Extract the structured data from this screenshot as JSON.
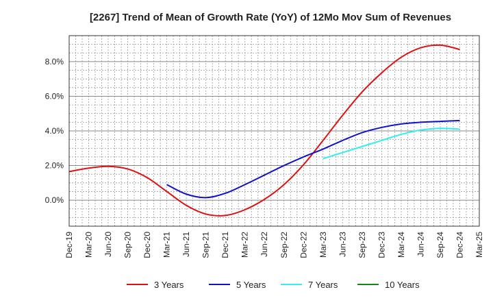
{
  "chart_data": {
    "type": "line",
    "title": "[2267]  Trend of Mean of Growth Rate (YoY) of 12Mo Mov Sum of Revenues",
    "xlabel": "",
    "ylabel": "",
    "ylim": [
      -1.5,
      9.5
    ],
    "yticks": [
      0,
      2,
      4,
      6,
      8
    ],
    "ytick_labels": [
      "0.0%",
      "2.0%",
      "4.0%",
      "6.0%",
      "8.0%"
    ],
    "xlim": [
      0,
      63
    ],
    "categories": [
      "Dec-19",
      "Mar-20",
      "Jun-20",
      "Sep-20",
      "Dec-20",
      "Mar-21",
      "Jun-21",
      "Sep-21",
      "Dec-21",
      "Mar-22",
      "Jun-22",
      "Sep-22",
      "Dec-22",
      "Mar-23",
      "Jun-23",
      "Sep-23",
      "Dec-23",
      "Mar-24",
      "Jun-24",
      "Sep-24",
      "Dec-24",
      "Mar-25"
    ],
    "grid": true,
    "legend_position": "bottom",
    "series": [
      {
        "name": "3 Years",
        "color": "#dd1111",
        "x": [
          0,
          3,
          6,
          9,
          12,
          15,
          18,
          21,
          24,
          27,
          30,
          33,
          36,
          39,
          42,
          45,
          48,
          51,
          54,
          57,
          60
        ],
        "values": [
          1.65,
          1.85,
          1.95,
          1.8,
          1.3,
          0.5,
          -0.3,
          -0.8,
          -0.88,
          -0.55,
          0.05,
          0.9,
          2.05,
          3.45,
          4.9,
          6.25,
          7.35,
          8.25,
          8.8,
          8.95,
          8.7
        ]
      },
      {
        "name": "5 Years",
        "color": "#1111cc",
        "x": [
          15,
          18,
          21,
          24,
          27,
          30,
          33,
          36,
          39,
          42,
          45,
          48,
          51,
          54,
          57,
          60
        ],
        "values": [
          0.9,
          0.35,
          0.15,
          0.4,
          0.9,
          1.45,
          2.0,
          2.5,
          2.95,
          3.45,
          3.9,
          4.2,
          4.4,
          4.5,
          4.55,
          4.6
        ]
      },
      {
        "name": "7 Years",
        "color": "#33eeee",
        "x": [
          39,
          42,
          45,
          48,
          51,
          54,
          57,
          60
        ],
        "values": [
          2.4,
          2.75,
          3.1,
          3.45,
          3.8,
          4.05,
          4.15,
          4.1
        ]
      },
      {
        "name": "10 Years",
        "color": "#118811",
        "x": [],
        "values": []
      }
    ]
  }
}
